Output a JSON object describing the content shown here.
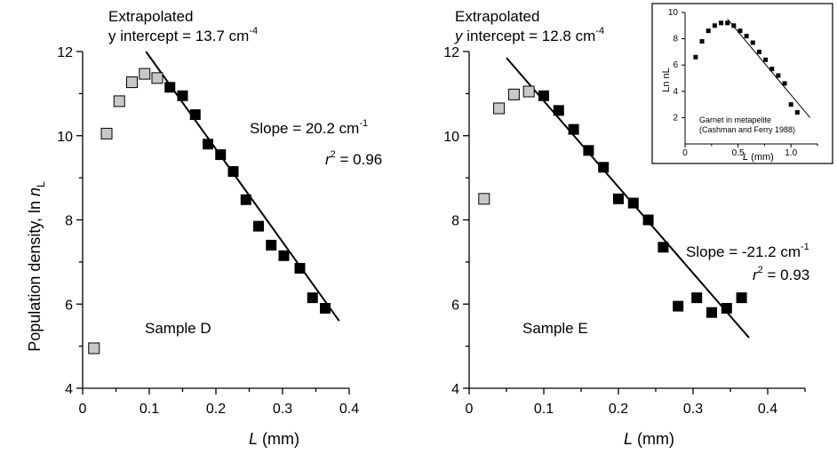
{
  "figure": {
    "ylabel_main": "Population density, ln ",
    "ylabel_italic": "n",
    "ylabel_sub": "L",
    "xlabel_italic": "L",
    "xlabel_unit": " (mm)"
  },
  "chart_data": [
    {
      "id": "sample-d",
      "type": "scatter",
      "title": "",
      "xlabel": "L (mm)",
      "ylabel": "Population density, ln nL",
      "xlim": [
        0,
        0.4
      ],
      "ylim": [
        4,
        12
      ],
      "xticks": [
        "0",
        "0.1",
        "0.2",
        "0.3",
        "0.4"
      ],
      "yticks": [
        "4",
        "6",
        "8",
        "10",
        "12"
      ],
      "grid": false,
      "series": [
        {
          "style": "open-gray",
          "x": [
            0.017,
            0.036,
            0.055,
            0.074,
            0.093,
            0.112
          ],
          "y": [
            4.95,
            10.05,
            10.82,
            11.27,
            11.47,
            11.37
          ]
        },
        {
          "style": "filled-black",
          "x": [
            0.131,
            0.15,
            0.169,
            0.188,
            0.207,
            0.226,
            0.245,
            0.264,
            0.283,
            0.302,
            0.326,
            0.345,
            0.364
          ],
          "y": [
            11.15,
            10.95,
            10.5,
            9.8,
            9.55,
            9.15,
            8.48,
            7.85,
            7.4,
            7.15,
            6.85,
            6.15,
            5.9
          ]
        }
      ],
      "fit_line": {
        "x": [
          0.095,
          0.385
        ],
        "y": [
          12.0,
          5.6
        ]
      },
      "annotations": {
        "extrapolated": "Extrapolated",
        "intercept_label": "y intercept = 13.7 cm",
        "intercept_exp": "-4",
        "slope_label": "Slope = 20.2 cm",
        "slope_exp": "-1",
        "r2_r": "r",
        "r2_exp": "2",
        "r2_value": " = 0.96",
        "sample": "Sample D"
      }
    },
    {
      "id": "sample-e",
      "type": "scatter",
      "title": "",
      "xlabel": "L (mm)",
      "ylabel": "",
      "xlim": [
        0,
        0.45
      ],
      "ylim": [
        4,
        12
      ],
      "xticks": [
        "0",
        "0.1",
        "0.2",
        "0.3",
        "0.4"
      ],
      "yticks": [
        "4",
        "6",
        "8",
        "10",
        "12"
      ],
      "grid": false,
      "series": [
        {
          "style": "open-gray",
          "x": [
            0.02,
            0.04,
            0.06,
            0.08
          ],
          "y": [
            8.5,
            10.65,
            10.98,
            11.05
          ]
        },
        {
          "style": "filled-black",
          "x": [
            0.1,
            0.12,
            0.14,
            0.16,
            0.18,
            0.2,
            0.22,
            0.24,
            0.26,
            0.28,
            0.305,
            0.325,
            0.345,
            0.365
          ],
          "y": [
            10.95,
            10.6,
            10.15,
            9.65,
            9.25,
            8.5,
            8.4,
            8.0,
            7.35,
            5.95,
            6.15,
            5.8,
            5.9,
            6.15
          ]
        }
      ],
      "fit_line": {
        "x": [
          0.05,
          0.375
        ],
        "y": [
          11.85,
          5.2
        ]
      },
      "annotations": {
        "extrapolated": "Extrapolated",
        "intercept_y": "y",
        "intercept_label": " intercept = 12.8 cm",
        "intercept_exp": "-4",
        "slope_label": "Slope = -21.2 cm",
        "slope_exp": "-1",
        "r2_r": "r",
        "r2_exp": "2",
        "r2_value": " = 0.93",
        "sample": "Sample E"
      }
    },
    {
      "id": "inset",
      "type": "scatter",
      "title": "",
      "xlabel": "L (mm)",
      "ylabel": "Ln nL",
      "xlim": [
        0,
        1.25
      ],
      "ylim": [
        0,
        10
      ],
      "xticks": [
        "0",
        "0.5",
        "1.0"
      ],
      "yticks": [
        "2",
        "4",
        "6",
        "8",
        "10"
      ],
      "grid": false,
      "series": [
        {
          "style": "small-black",
          "x": [
            0.1,
            0.16,
            0.22,
            0.28,
            0.34,
            0.4,
            0.46,
            0.52,
            0.58,
            0.64,
            0.7,
            0.76,
            0.82,
            0.88,
            0.94,
            1.0,
            1.06
          ],
          "y": [
            6.6,
            7.8,
            8.6,
            9.0,
            9.2,
            9.2,
            9.0,
            8.6,
            8.2,
            7.7,
            7.0,
            6.4,
            5.7,
            5.2,
            4.6,
            3.0,
            2.4
          ]
        }
      ],
      "fit_line": {
        "x": [
          0.4,
          1.18
        ],
        "y": [
          9.5,
          2.0
        ]
      },
      "annotations": {
        "note_line1": "Garnet in metapelite",
        "note_line2": "(Cashman and Ferry 1988)"
      }
    }
  ]
}
